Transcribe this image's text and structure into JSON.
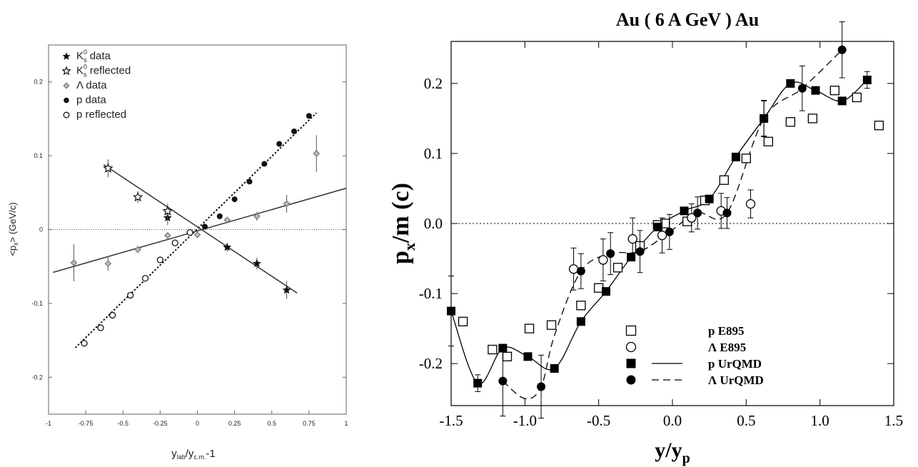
{
  "chart_data": [
    {
      "type": "scatter",
      "title": "",
      "xlabel": {
        "main": "y",
        "sub1": "lab",
        "mid": "/y",
        "sub2": "c.m.",
        "tail": "-1"
      },
      "ylabel": {
        "pre": "<p",
        "sub": "x",
        "post": "> (GeV/c)"
      },
      "xlim": [
        -1,
        1
      ],
      "ylim": [
        -0.25,
        0.25
      ],
      "xticks": [
        {
          "v": -1,
          "label": "-1"
        },
        {
          "v": -0.75,
          "label": "-0.75"
        },
        {
          "v": -0.5,
          "label": "-0.5"
        },
        {
          "v": -0.25,
          "label": "-0.25"
        },
        {
          "v": 0,
          "label": "0"
        },
        {
          "v": 0.25,
          "label": "0.25"
        },
        {
          "v": 0.5,
          "label": "0.5"
        },
        {
          "v": 0.75,
          "label": "0.75"
        },
        {
          "v": 1,
          "label": "1"
        }
      ],
      "yticks": [
        {
          "v": -0.2,
          "label": "-0.2"
        },
        {
          "v": -0.1,
          "label": "-0.1"
        },
        {
          "v": 0,
          "label": "0"
        },
        {
          "v": 0.1,
          "label": "0.1"
        },
        {
          "v": 0.2,
          "label": "0.2"
        }
      ],
      "legend_position": "top-left",
      "series": [
        {
          "name_main": "K",
          "name_sup": "0",
          "name_sub": "s",
          "name_rest": " data",
          "marker": "star-filled",
          "points": [
            [
              -0.2,
              0.016
            ],
            [
              0.2,
              -0.024
            ],
            [
              0.4,
              -0.046
            ],
            [
              0.6,
              -0.082
            ]
          ],
          "errors": [
            0.01,
            0.006,
            0.008,
            0.012
          ]
        },
        {
          "name_main": "K",
          "name_sup": "0",
          "name_sub": "s",
          "name_rest": " reflected",
          "marker": "star-open",
          "points": [
            [
              -0.6,
              0.083
            ],
            [
              -0.4,
              0.044
            ],
            [
              -0.2,
              0.025
            ]
          ],
          "errors": [
            0.012,
            0.008,
            0.01
          ]
        },
        {
          "name_main": "Λ data",
          "marker": "diamond",
          "points": [
            [
              -0.83,
              -0.045
            ],
            [
              -0.6,
              -0.046
            ],
            [
              -0.4,
              -0.027
            ],
            [
              -0.2,
              -0.008
            ],
            [
              -0.05,
              -0.004
            ],
            [
              0.0,
              -0.007
            ],
            [
              0.2,
              0.013
            ],
            [
              0.4,
              0.018
            ],
            [
              0.6,
              0.035
            ],
            [
              0.8,
              0.103
            ]
          ],
          "errors": [
            0.025,
            0.01,
            0.005,
            0.004,
            0.003,
            0.003,
            0.004,
            0.006,
            0.012,
            0.025
          ]
        },
        {
          "name_main": "p data",
          "marker": "circle-filled",
          "points": [
            [
              0.05,
              0.004
            ],
            [
              0.15,
              0.018
            ],
            [
              0.25,
              0.041
            ],
            [
              0.35,
              0.065
            ],
            [
              0.45,
              0.089
            ],
            [
              0.55,
              0.116
            ],
            [
              0.65,
              0.133
            ],
            [
              0.75,
              0.154
            ]
          ],
          "errors": []
        },
        {
          "name_main": "p reflected",
          "marker": "circle-open",
          "points": [
            [
              -0.05,
              -0.004
            ],
            [
              -0.15,
              -0.018
            ],
            [
              -0.25,
              -0.041
            ],
            [
              -0.35,
              -0.066
            ],
            [
              -0.45,
              -0.089
            ],
            [
              -0.57,
              -0.116
            ],
            [
              -0.65,
              -0.133
            ],
            [
              -0.76,
              -0.154
            ]
          ],
          "errors": []
        }
      ],
      "fit_lines": [
        {
          "style": "solid",
          "points": [
            [
              -0.63,
              0.088
            ],
            [
              0.67,
              -0.086
            ]
          ]
        },
        {
          "style": "solid",
          "points": [
            [
              -0.97,
              -0.058
            ],
            [
              1.0,
              0.056
            ]
          ]
        },
        {
          "style": "dotted",
          "points": [
            [
              -0.82,
              -0.16
            ],
            [
              0.8,
              0.158
            ]
          ]
        }
      ],
      "zero_line": true
    },
    {
      "type": "scatter",
      "title": "Au ( 6 A GeV ) Au",
      "xlabel": {
        "main": "y/y",
        "sub": "p"
      },
      "ylabel": {
        "main": "p",
        "sub": "x",
        "post": "/m (c)"
      },
      "xlim": [
        -1.5,
        1.5
      ],
      "ylim": [
        -0.26,
        0.26
      ],
      "xticks": [
        {
          "v": -1.5,
          "label": "-1.5"
        },
        {
          "v": -1.0,
          "label": "-1.0"
        },
        {
          "v": -0.5,
          "label": "-0.5"
        },
        {
          "v": 0.0,
          "label": "0.0"
        },
        {
          "v": 0.5,
          "label": "0.5"
        },
        {
          "v": 1.0,
          "label": "1.0"
        },
        {
          "v": 1.5,
          "label": "1.5"
        }
      ],
      "yticks": [
        {
          "v": -0.2,
          "label": "-0.2"
        },
        {
          "v": -0.1,
          "label": "-0.1"
        },
        {
          "v": 0.0,
          "label": "0.0"
        },
        {
          "v": 0.1,
          "label": "0.1"
        },
        {
          "v": 0.2,
          "label": "0.2"
        }
      ],
      "legend_position": "bottom-right",
      "series": [
        {
          "name": "p E895",
          "marker": "square-open",
          "points": [
            [
              -1.42,
              -0.14
            ],
            [
              -1.22,
              -0.18
            ],
            [
              -1.12,
              -0.19
            ],
            [
              -0.97,
              -0.15
            ],
            [
              -0.82,
              -0.145
            ],
            [
              -0.62,
              -0.117
            ],
            [
              -0.5,
              -0.092
            ],
            [
              -0.37,
              -0.063
            ],
            [
              -0.22,
              -0.032
            ],
            [
              -0.1,
              -0.002
            ],
            [
              -0.05,
              0.0
            ],
            [
              0.1,
              0.003
            ],
            [
              0.22,
              0.033
            ],
            [
              0.35,
              0.062
            ],
            [
              0.5,
              0.093
            ],
            [
              0.65,
              0.117
            ],
            [
              0.8,
              0.145
            ],
            [
              0.95,
              0.15
            ],
            [
              1.1,
              0.19
            ],
            [
              1.25,
              0.18
            ],
            [
              1.4,
              0.14
            ]
          ]
        },
        {
          "name": "Λ E895",
          "marker": "circle-open",
          "points": [
            [
              -0.67,
              -0.065
            ],
            [
              -0.47,
              -0.052
            ],
            [
              -0.27,
              -0.022
            ],
            [
              -0.07,
              -0.017
            ],
            [
              0.13,
              0.008
            ],
            [
              0.33,
              0.018
            ],
            [
              0.53,
              0.028
            ]
          ],
          "errors": [
            0.03,
            0.03,
            0.03,
            0.025,
            0.02,
            0.025,
            0.02
          ]
        },
        {
          "name": "p UrQMD",
          "marker": "square-filled",
          "points": [
            [
              -1.5,
              -0.125
            ],
            [
              -1.32,
              -0.228
            ],
            [
              -1.15,
              -0.178
            ],
            [
              -0.98,
              -0.19
            ],
            [
              -0.8,
              -0.207
            ],
            [
              -0.62,
              -0.14
            ],
            [
              -0.45,
              -0.097
            ],
            [
              -0.28,
              -0.048
            ],
            [
              -0.1,
              -0.005
            ],
            [
              0.08,
              0.018
            ],
            [
              0.25,
              0.035
            ],
            [
              0.43,
              0.095
            ],
            [
              0.62,
              0.15
            ],
            [
              0.8,
              0.2
            ],
            [
              0.97,
              0.19
            ],
            [
              1.15,
              0.175
            ],
            [
              1.32,
              0.205
            ]
          ],
          "errors": [
            0.05,
            0.012,
            0,
            0,
            0,
            0,
            0,
            0,
            0,
            0,
            0,
            0,
            0.025,
            0,
            0,
            0,
            0.012
          ]
        },
        {
          "name": "Λ UrQMD",
          "marker": "circle-filled",
          "points": [
            [
              -1.15,
              -0.225
            ],
            [
              -0.89,
              -0.233
            ],
            [
              -0.62,
              -0.068
            ],
            [
              -0.42,
              -0.043
            ],
            [
              -0.22,
              -0.04
            ],
            [
              -0.02,
              -0.012
            ],
            [
              0.17,
              0.015
            ],
            [
              0.37,
              0.015
            ],
            [
              0.62,
              0.15
            ],
            [
              0.88,
              0.193
            ],
            [
              1.15,
              0.248
            ]
          ],
          "errors": [
            0.05,
            0.045,
            0.025,
            0.03,
            0.03,
            0.025,
            0.023,
            0.022,
            0.026,
            0.032,
            0.04
          ]
        }
      ],
      "curves": [
        {
          "name": "p UrQMD",
          "style": "solid",
          "points": [
            [
              -1.5,
              -0.125
            ],
            [
              -1.32,
              -0.228
            ],
            [
              -1.15,
              -0.178
            ],
            [
              -0.98,
              -0.19
            ],
            [
              -0.8,
              -0.207
            ],
            [
              -0.62,
              -0.14
            ],
            [
              -0.45,
              -0.097
            ],
            [
              -0.28,
              -0.048
            ],
            [
              -0.1,
              -0.005
            ],
            [
              0.08,
              0.018
            ],
            [
              0.25,
              0.035
            ],
            [
              0.43,
              0.095
            ],
            [
              0.62,
              0.15
            ],
            [
              0.8,
              0.2
            ],
            [
              0.97,
              0.19
            ],
            [
              1.15,
              0.175
            ],
            [
              1.32,
              0.205
            ]
          ]
        },
        {
          "name": "Λ UrQMD",
          "style": "dashed",
          "points": [
            [
              -1.15,
              -0.225
            ],
            [
              -1.0,
              -0.25
            ],
            [
              -0.89,
              -0.233
            ],
            [
              -0.8,
              -0.16
            ],
            [
              -0.62,
              -0.068
            ],
            [
              -0.42,
              -0.043
            ],
            [
              -0.22,
              -0.04
            ],
            [
              -0.02,
              -0.012
            ],
            [
              0.17,
              0.015
            ],
            [
              0.37,
              0.015
            ],
            [
              0.62,
              0.15
            ],
            [
              0.88,
              0.193
            ],
            [
              1.15,
              0.248
            ]
          ]
        }
      ],
      "zero_line": true
    }
  ]
}
